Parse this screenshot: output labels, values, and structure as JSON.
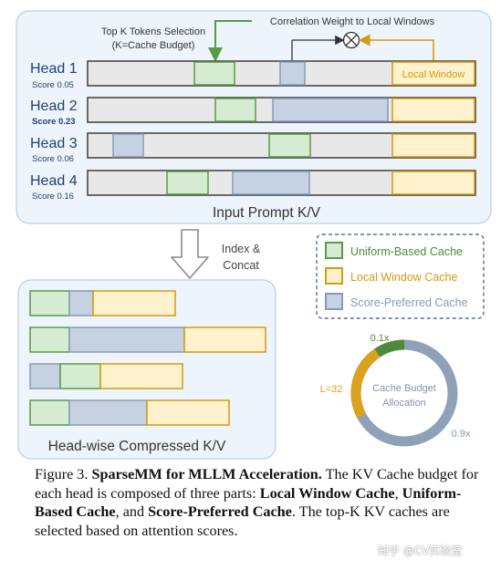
{
  "colors": {
    "panel_bg": "#eef4fb",
    "panel_border": "#b9cde3",
    "bar_bg": "#e8e8e8",
    "bar_border": "#3d3d3d",
    "uniform_fill": "#d6ecd2",
    "uniform_border": "#5b9a45",
    "local_fill": "#fff2cc",
    "local_border": "#d49a12",
    "score_fill": "#c6d2e2",
    "score_border": "#8899b4",
    "head_label": "#1f3f73",
    "ring_gray": "#8fa1b7",
    "ring_gold": "#d9a11c",
    "ring_green": "#4e8a3a"
  },
  "top_annotations": {
    "topk_line1": "Top K Tokens Selection",
    "topk_line2": "(K=Cache Budget)",
    "correlation": "Correlation Weight to Local Windows",
    "local_window": "Local Window"
  },
  "heads": [
    {
      "label": "Head 1",
      "score": "Score 0.05",
      "score_bold": false
    },
    {
      "label": "Head 2",
      "score": "Score 0.23",
      "score_bold": true
    },
    {
      "label": "Head 3",
      "score": "Score 0.06",
      "score_bold": false
    },
    {
      "label": "Head 4",
      "score": "Score 0.16",
      "score_bold": false
    }
  ],
  "input_title": "Input Prompt K/V",
  "index_concat": [
    "Index &",
    "Concat"
  ],
  "compressed_title": "Head-wise Compressed K/V",
  "legend": [
    {
      "key": "uniform",
      "label": "Uniform-Based Cache"
    },
    {
      "key": "local",
      "label": "Local Window Cache"
    },
    {
      "key": "score",
      "label": "Score-Preferred Cache"
    }
  ],
  "donut": {
    "center_line1": "Cache Budget",
    "center_line2": "Allocation",
    "label_top": "0.1x",
    "label_left": "L=32",
    "label_right": "0.9x"
  },
  "caption": {
    "lead": "Figure 3. ",
    "title": "SparseMM for MLLM Acceleration.",
    "t1": " The KV Cache budget for each head is composed of three parts: ",
    "b1": "Local Window Cache",
    "t2": ", ",
    "b2": "Uniform-Based Cache",
    "t3": ", and ",
    "b3": "Score-Preferred Cache",
    "t4": ". The top-K KV caches are selected based on attention scores."
  },
  "watermark": "知乎 @CV实验室"
}
